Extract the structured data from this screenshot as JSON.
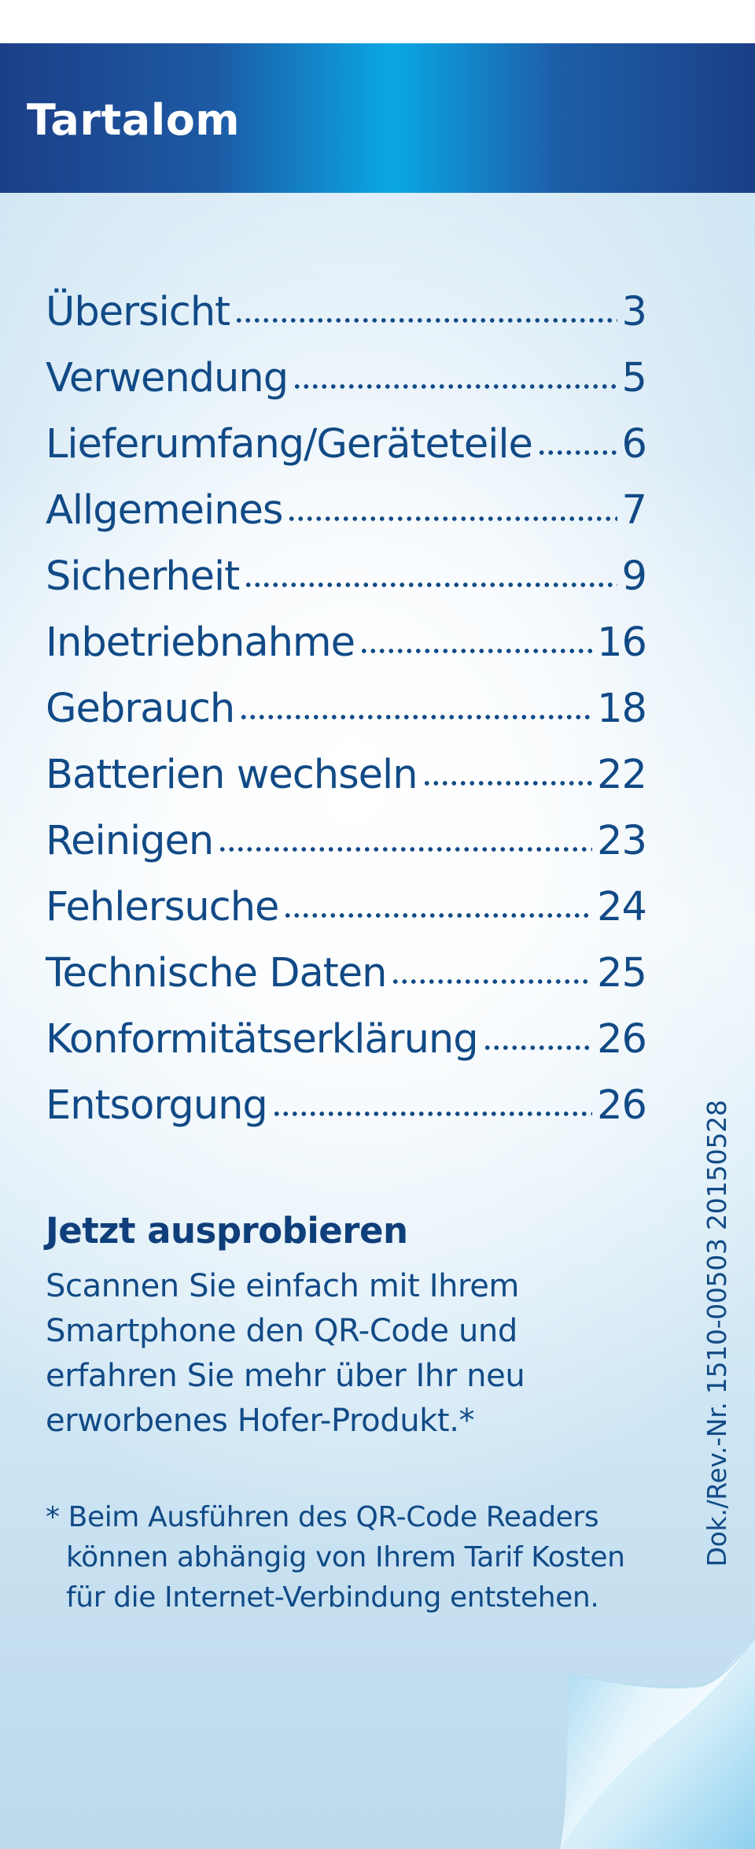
{
  "header": {
    "title": "Tartalom"
  },
  "toc": [
    {
      "title": "Übersicht",
      "page": "3"
    },
    {
      "title": "Verwendung",
      "page": "5"
    },
    {
      "title": "Lieferumfang/Geräteteile",
      "page": "6"
    },
    {
      "title": "Allgemeines",
      "page": "7"
    },
    {
      "title": "Sicherheit",
      "page": "9"
    },
    {
      "title": "Inbetriebnahme",
      "page": "16"
    },
    {
      "title": "Gebrauch",
      "page": "18"
    },
    {
      "title": "Batterien wechseln",
      "page": "22"
    },
    {
      "title": "Reinigen",
      "page": "23"
    },
    {
      "title": "Fehlersuche",
      "page": "24"
    },
    {
      "title": "Technische Daten",
      "page": "25"
    },
    {
      "title": "Konformitätserklärung",
      "page": "26"
    },
    {
      "title": "Entsorgung",
      "page": "26"
    }
  ],
  "promo": {
    "heading": "Jetzt ausprobieren",
    "lines": [
      "Scannen Sie einfach mit Ihrem",
      "Smartphone den QR-Code und",
      "erfahren Sie mehr über Ihr neu",
      "erworbenes Hofer-Produkt.*"
    ]
  },
  "footnote": {
    "lines": [
      "* Beim Ausführen des QR-Code Readers",
      "können abhängig von Ihrem Tarif Kosten",
      "für die Internet-Verbindung entstehen."
    ]
  },
  "doc_number": "Dok./Rev.-Nr. 1510-00503 20150528",
  "colors": {
    "brand_dark_blue": "#1c3f87",
    "brand_light_blue": "#0ba7e4",
    "text_blue": "#114a86"
  }
}
